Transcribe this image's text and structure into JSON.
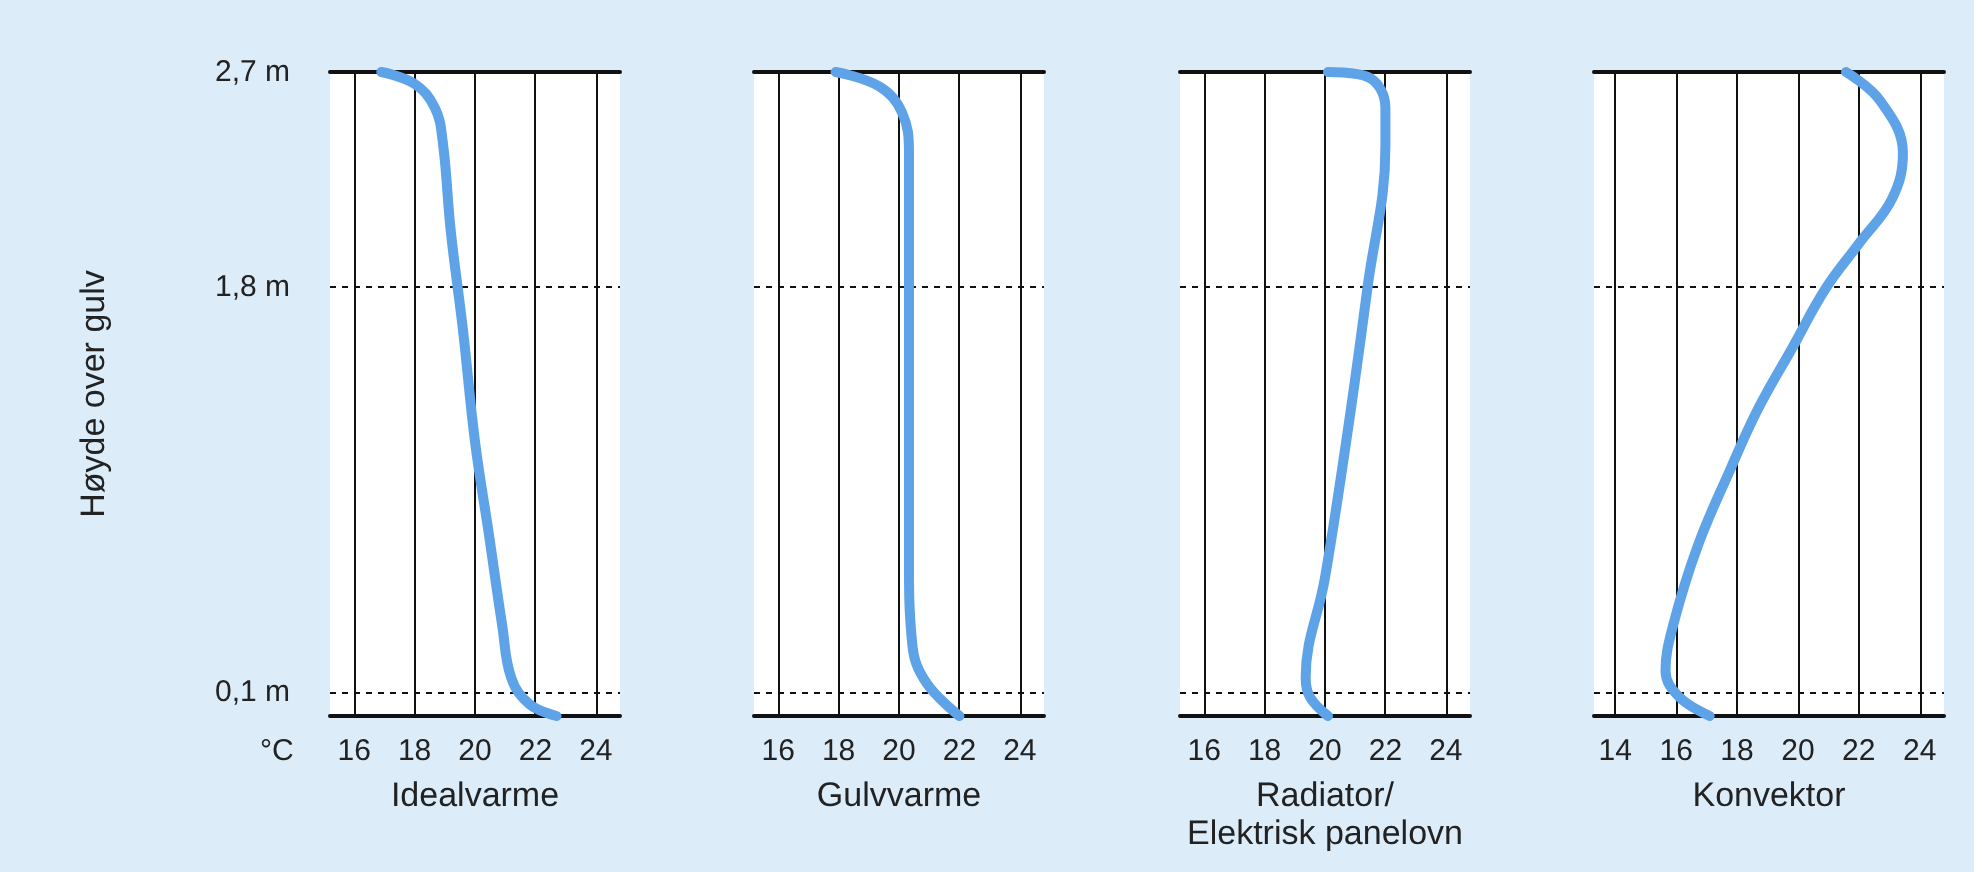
{
  "chart_data": [
    {
      "type": "line",
      "xlabel": "Idealvarme",
      "ylabel": "Høyde over gulv",
      "annotations": [
        "°C"
      ],
      "xlim": [
        15.2,
        24.8
      ],
      "xticks": [
        16,
        18,
        20,
        22,
        24
      ],
      "ylim": [
        0,
        2.7
      ],
      "yticks": [
        {
          "value": 0.1,
          "label": "0,1 m"
        },
        {
          "value": 1.8,
          "label": "1,8 m"
        },
        {
          "value": 2.7,
          "label": "2,7 m"
        }
      ],
      "grid": true,
      "series": [
        {
          "color": "#5ea2e8",
          "x": [
            16.9,
            18,
            18.67,
            18.93,
            19.2,
            19.6,
            20,
            20.45,
            20.9,
            21.2,
            21.8,
            22.7
          ],
          "values": [
            2.7,
            2.65,
            2.55,
            2.41,
            2.03,
            1.62,
            1.15,
            0.77,
            0.38,
            0.16,
            0.05,
            0
          ]
        }
      ]
    },
    {
      "type": "line",
      "xlabel": "Gulvvarme",
      "xlim": [
        15.2,
        24.8
      ],
      "xticks": [
        16,
        18,
        20,
        22,
        24
      ],
      "ylim": [
        0,
        2.7
      ],
      "yticks": [
        {
          "value": 0.1,
          "label": null
        },
        {
          "value": 1.8,
          "label": null
        },
        {
          "value": 2.7,
          "label": null
        }
      ],
      "tick_labels": "x",
      "grid": true,
      "series": [
        {
          "color": "#5ea2e8",
          "x": [
            17.9,
            19.34,
            20.1,
            20.33,
            20.33,
            20.33,
            20.44,
            20.9,
            22
          ],
          "values": [
            2.7,
            2.64,
            2.53,
            2.36,
            1.76,
            0.66,
            0.3,
            0.14,
            0
          ]
        }
      ]
    },
    {
      "type": "line",
      "xlabel": "Radiator/ Elektrisk panelovn",
      "xlim": [
        15.2,
        24.8
      ],
      "xticks": [
        16,
        18,
        20,
        22,
        24
      ],
      "ylim": [
        0,
        2.7
      ],
      "yticks": [
        {
          "value": 0.1,
          "label": null
        },
        {
          "value": 1.8,
          "label": null
        },
        {
          "value": 2.7,
          "label": null
        }
      ],
      "tick_labels": "x",
      "grid": true,
      "series": [
        {
          "color": "#5ea2e8",
          "x": [
            20.1,
            21.4,
            22,
            22,
            21.4,
            20.77,
            20,
            19.36,
            19.5,
            20.1
          ],
          "values": [
            2.7,
            2.68,
            2.55,
            2.39,
            1.79,
            1.21,
            0.58,
            0.16,
            0.08,
            0
          ]
        }
      ]
    },
    {
      "type": "line",
      "xlabel": "Konvektor",
      "xlim": [
        13.3,
        24.8
      ],
      "xticks": [
        14,
        16,
        18,
        20,
        22,
        24
      ],
      "ylim": [
        0,
        2.7
      ],
      "yticks": [
        {
          "value": 0.1,
          "label": null
        },
        {
          "value": 1.8,
          "label": null
        },
        {
          "value": 2.7,
          "label": null
        }
      ],
      "tick_labels": "x",
      "grid": true,
      "series": [
        {
          "color": "#5ea2e8",
          "x": [
            21.58,
            22.7,
            23.45,
            23.1,
            22,
            20.9,
            19.8,
            18.7,
            17.8,
            16.7,
            15.9,
            15.65,
            16.1,
            17.1
          ],
          "values": [
            2.7,
            2.58,
            2.36,
            2.17,
            1.98,
            1.79,
            1.54,
            1.29,
            1.04,
            0.71,
            0.38,
            0.19,
            0.08,
            0
          ]
        }
      ]
    }
  ]
}
